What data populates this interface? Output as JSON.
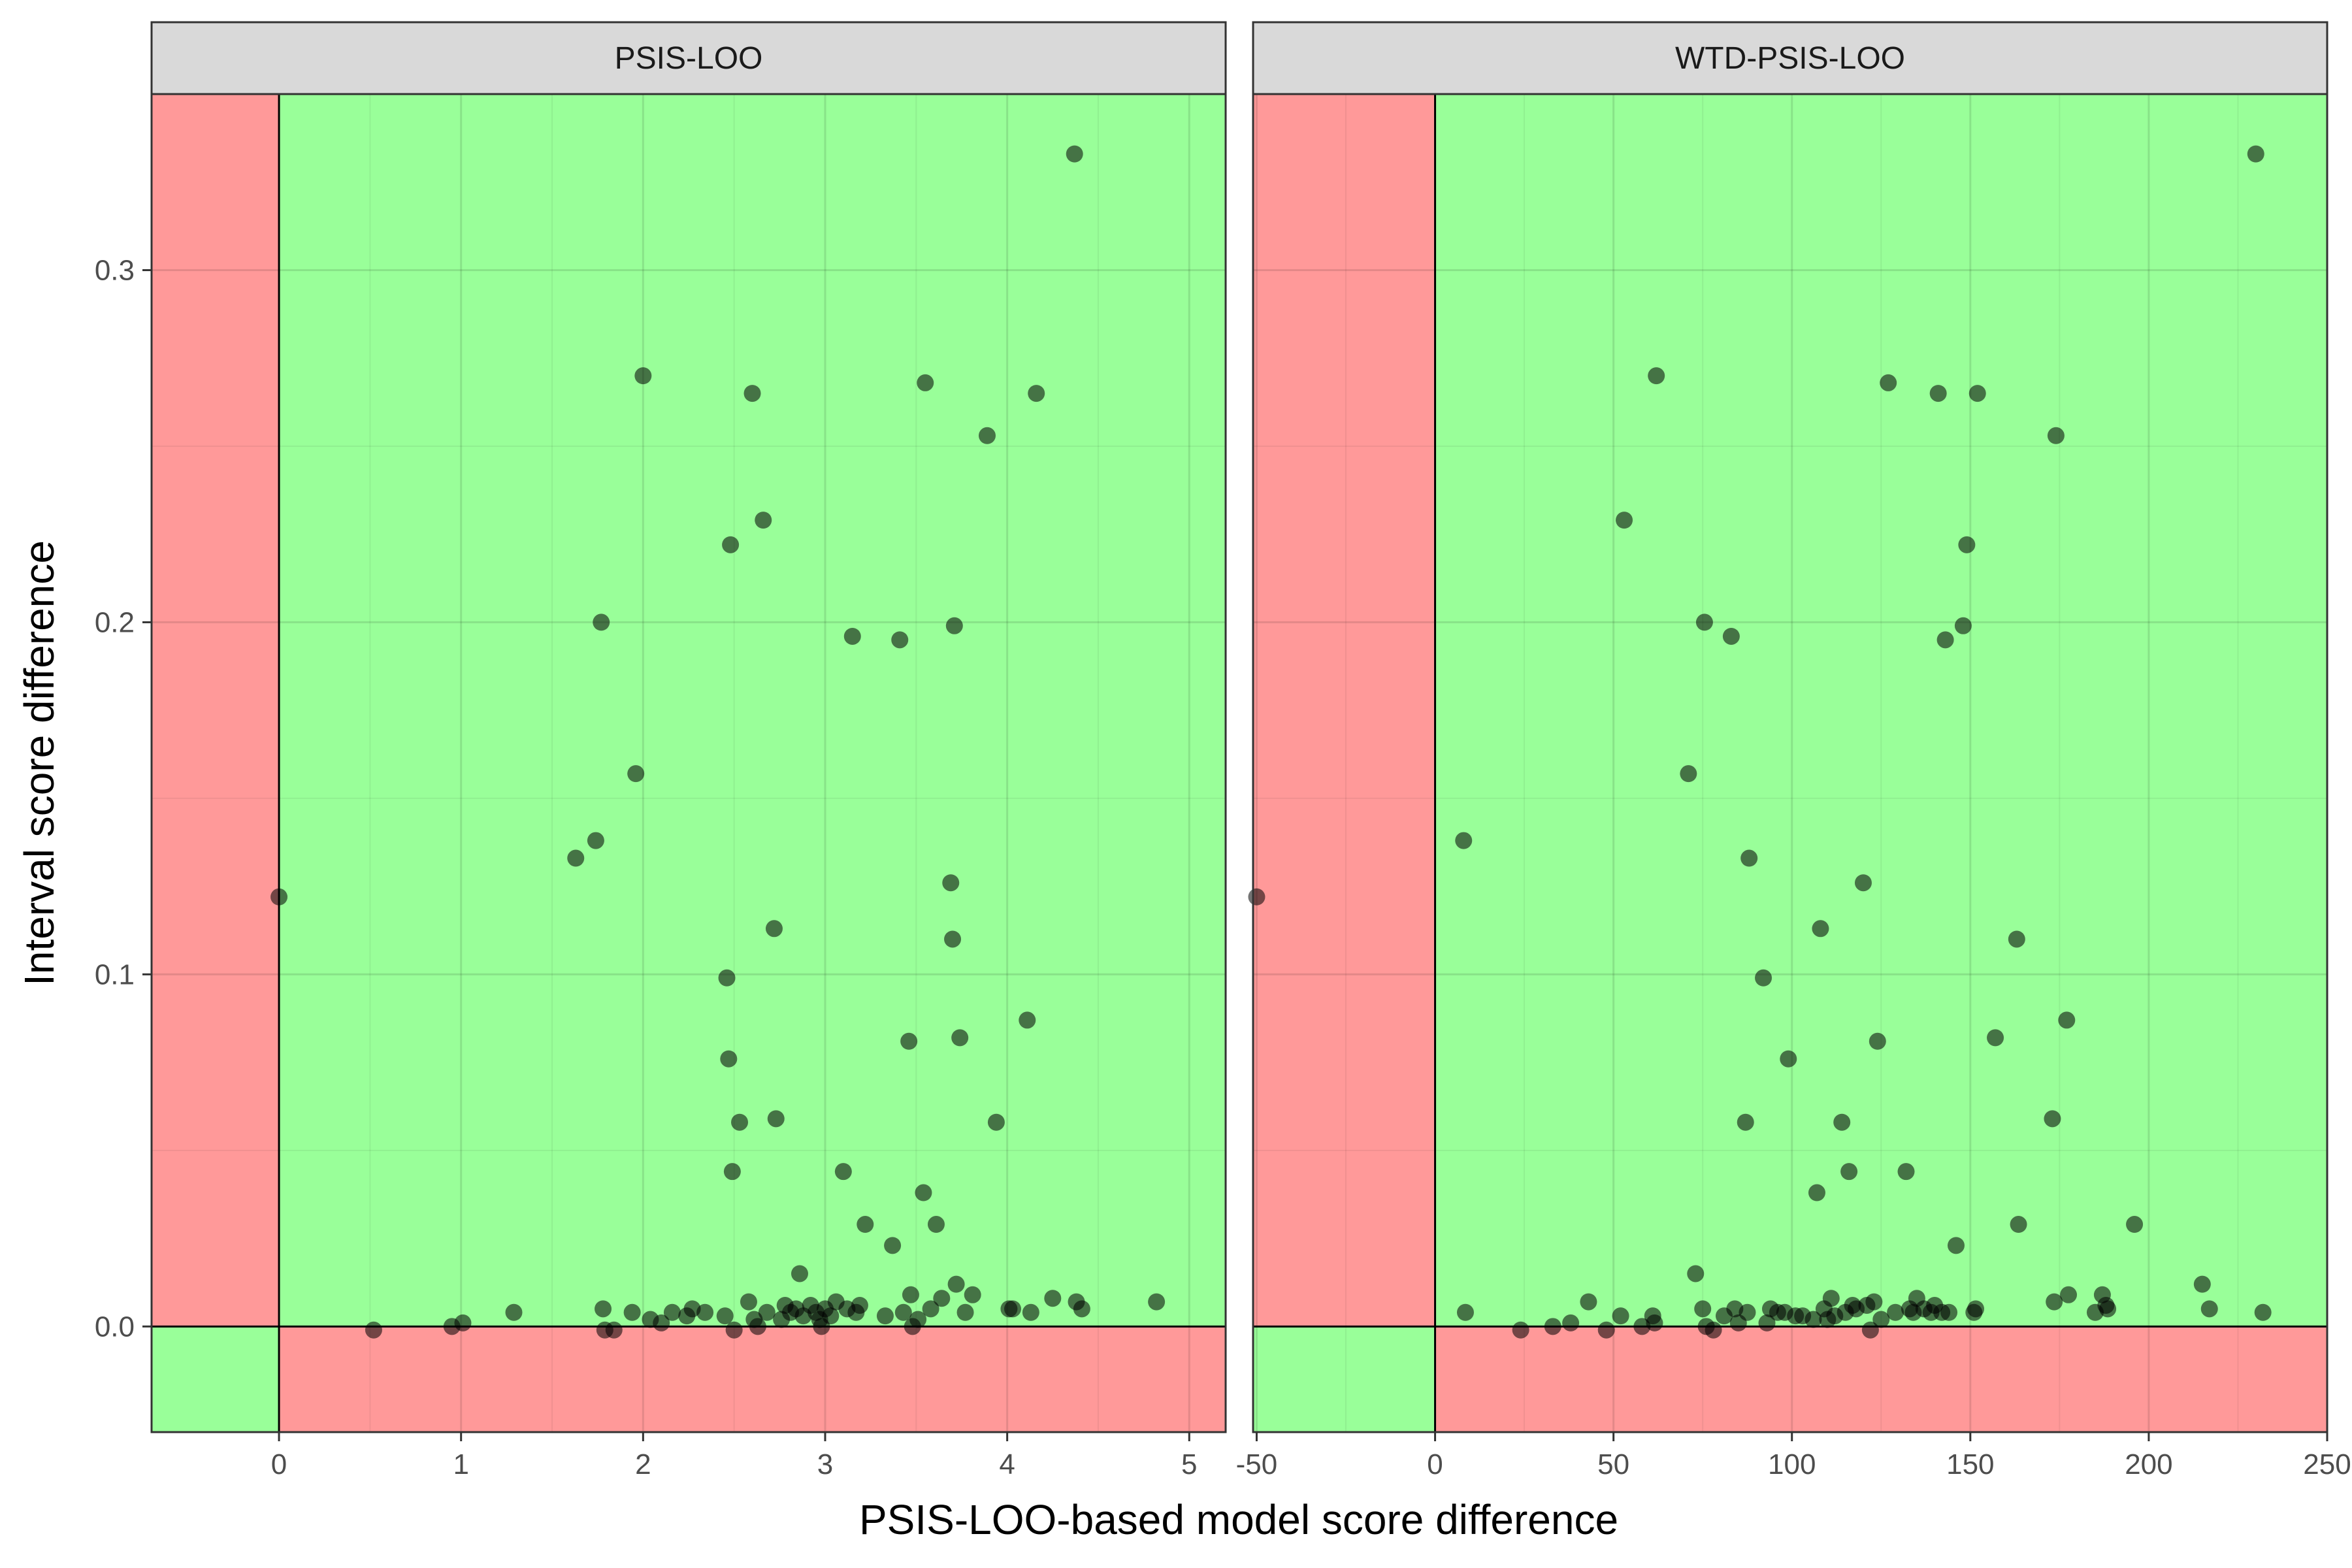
{
  "chart_data": {
    "type": "scatter",
    "xlabel": "PSIS-LOO-based model score difference",
    "ylabel": "Interval score difference",
    "ylim": [
      -0.03,
      0.35
    ],
    "y_ticks": [
      0.0,
      0.1,
      0.2,
      0.3
    ],
    "y_tick_labels": [
      "0.0",
      "0.1",
      "0.2",
      "0.3"
    ],
    "grid": true,
    "colors": {
      "good_region": "#99ff99",
      "bad_region": "#ff9999",
      "points": "#000000"
    },
    "region_rule": "green when x and y have the same sign, red otherwise",
    "panels": [
      {
        "title": "PSIS-LOO",
        "xlim": [
          -0.7,
          5.2
        ],
        "x_ticks": [
          0,
          1,
          2,
          3,
          4,
          5
        ],
        "x_tick_labels": [
          "0",
          "1",
          "2",
          "3",
          "4",
          "5"
        ],
        "points": [
          [
            0.0,
            0.122
          ],
          [
            0.52,
            -0.001
          ],
          [
            0.95,
            0.0
          ],
          [
            1.01,
            0.001
          ],
          [
            1.29,
            0.004
          ],
          [
            1.63,
            0.133
          ],
          [
            1.74,
            0.138
          ],
          [
            1.77,
            0.2
          ],
          [
            1.78,
            0.005
          ],
          [
            1.79,
            -0.001
          ],
          [
            1.84,
            -0.001
          ],
          [
            1.94,
            0.004
          ],
          [
            1.96,
            0.157
          ],
          [
            2.0,
            0.27
          ],
          [
            2.04,
            0.002
          ],
          [
            2.1,
            0.001
          ],
          [
            2.16,
            0.004
          ],
          [
            2.24,
            0.003
          ],
          [
            2.27,
            0.005
          ],
          [
            2.34,
            0.004
          ],
          [
            2.45,
            0.003
          ],
          [
            2.46,
            0.099
          ],
          [
            2.47,
            0.076
          ],
          [
            2.48,
            0.222
          ],
          [
            2.49,
            0.044
          ],
          [
            2.5,
            -0.001
          ],
          [
            2.53,
            0.058
          ],
          [
            2.58,
            0.007
          ],
          [
            2.6,
            0.265
          ],
          [
            2.61,
            0.002
          ],
          [
            2.63,
            0.0
          ],
          [
            2.66,
            0.229
          ],
          [
            2.68,
            0.004
          ],
          [
            2.72,
            0.113
          ],
          [
            2.73,
            0.059
          ],
          [
            2.76,
            0.002
          ],
          [
            2.78,
            0.006
          ],
          [
            2.81,
            0.004
          ],
          [
            2.84,
            0.005
          ],
          [
            2.86,
            0.015
          ],
          [
            2.88,
            0.003
          ],
          [
            2.92,
            0.006
          ],
          [
            2.95,
            0.004
          ],
          [
            2.97,
            0.002
          ],
          [
            2.98,
            0.0
          ],
          [
            3.0,
            0.005
          ],
          [
            3.03,
            0.003
          ],
          [
            3.06,
            0.007
          ],
          [
            3.1,
            0.044
          ],
          [
            3.12,
            0.005
          ],
          [
            3.15,
            0.196
          ],
          [
            3.17,
            0.004
          ],
          [
            3.19,
            0.006
          ],
          [
            3.22,
            0.029
          ],
          [
            3.33,
            0.003
          ],
          [
            3.37,
            0.023
          ],
          [
            3.41,
            0.195
          ],
          [
            3.43,
            0.004
          ],
          [
            3.46,
            0.081
          ],
          [
            3.47,
            0.009
          ],
          [
            3.48,
            0.0
          ],
          [
            3.51,
            0.002
          ],
          [
            3.54,
            0.038
          ],
          [
            3.55,
            0.268
          ],
          [
            3.58,
            0.005
          ],
          [
            3.61,
            0.029
          ],
          [
            3.64,
            0.008
          ],
          [
            3.69,
            0.126
          ],
          [
            3.7,
            0.11
          ],
          [
            3.71,
            0.199
          ],
          [
            3.72,
            0.012
          ],
          [
            3.74,
            0.082
          ],
          [
            3.77,
            0.004
          ],
          [
            3.81,
            0.009
          ],
          [
            3.89,
            0.253
          ],
          [
            3.94,
            0.058
          ],
          [
            4.01,
            0.005
          ],
          [
            4.03,
            0.005
          ],
          [
            4.11,
            0.087
          ],
          [
            4.13,
            0.004
          ],
          [
            4.16,
            0.265
          ],
          [
            4.25,
            0.008
          ],
          [
            4.37,
            0.333
          ],
          [
            4.38,
            0.007
          ],
          [
            4.41,
            0.005
          ],
          [
            4.82,
            0.007
          ]
        ]
      },
      {
        "title": "WTD-PSIS-LOO",
        "xlim": [
          -51,
          250
        ],
        "x_ticks": [
          -50,
          0,
          50,
          100,
          150,
          200,
          250
        ],
        "x_tick_labels": [
          "-50",
          "0",
          "50",
          "100",
          "150",
          "200",
          "250"
        ],
        "points": [
          [
            -50.0,
            0.122
          ],
          [
            8.0,
            0.138
          ],
          [
            8.5,
            0.004
          ],
          [
            24.0,
            -0.001
          ],
          [
            33.0,
            0.0
          ],
          [
            38.0,
            0.001
          ],
          [
            43.0,
            0.007
          ],
          [
            48.0,
            -0.001
          ],
          [
            52.0,
            0.003
          ],
          [
            53.0,
            0.229
          ],
          [
            58.0,
            0.0
          ],
          [
            61.0,
            0.003
          ],
          [
            61.5,
            0.001
          ],
          [
            62.0,
            0.27
          ],
          [
            71.0,
            0.157
          ],
          [
            73.0,
            0.015
          ],
          [
            75.0,
            0.005
          ],
          [
            75.5,
            0.2
          ],
          [
            76.0,
            0.0
          ],
          [
            78.0,
            -0.001
          ],
          [
            81.0,
            0.003
          ],
          [
            83.0,
            0.196
          ],
          [
            84.0,
            0.005
          ],
          [
            85.0,
            0.001
          ],
          [
            87.0,
            0.058
          ],
          [
            87.5,
            0.004
          ],
          [
            88.0,
            0.133
          ],
          [
            92.0,
            0.099
          ],
          [
            93.0,
            0.001
          ],
          [
            94.0,
            0.005
          ],
          [
            96.0,
            0.004
          ],
          [
            98.0,
            0.004
          ],
          [
            99.0,
            0.076
          ],
          [
            101.0,
            0.003
          ],
          [
            103.0,
            0.003
          ],
          [
            106.0,
            0.002
          ],
          [
            107.0,
            0.038
          ],
          [
            108.0,
            0.113
          ],
          [
            109.0,
            0.005
          ],
          [
            110.0,
            0.002
          ],
          [
            111.0,
            0.008
          ],
          [
            112.0,
            0.003
          ],
          [
            114.0,
            0.058
          ],
          [
            115.0,
            0.004
          ],
          [
            116.0,
            0.044
          ],
          [
            117.0,
            0.006
          ],
          [
            118.0,
            0.005
          ],
          [
            120.0,
            0.126
          ],
          [
            121.0,
            0.006
          ],
          [
            122.0,
            -0.001
          ],
          [
            123.0,
            0.007
          ],
          [
            124.0,
            0.081
          ],
          [
            125.0,
            0.002
          ],
          [
            127.0,
            0.268
          ],
          [
            129.0,
            0.004
          ],
          [
            132.0,
            0.044
          ],
          [
            133.0,
            0.005
          ],
          [
            134.0,
            0.004
          ],
          [
            135.0,
            0.008
          ],
          [
            137.0,
            0.005
          ],
          [
            139.0,
            0.004
          ],
          [
            140.0,
            0.006
          ],
          [
            141.0,
            0.265
          ],
          [
            142.0,
            0.004
          ],
          [
            143.0,
            0.195
          ],
          [
            144.0,
            0.004
          ],
          [
            146.0,
            0.023
          ],
          [
            148.0,
            0.199
          ],
          [
            149.0,
            0.222
          ],
          [
            151.0,
            0.004
          ],
          [
            151.5,
            0.005
          ],
          [
            152.0,
            0.265
          ],
          [
            157.0,
            0.082
          ],
          [
            163.0,
            0.11
          ],
          [
            163.5,
            0.029
          ],
          [
            173.0,
            0.059
          ],
          [
            173.5,
            0.007
          ],
          [
            174.0,
            0.253
          ],
          [
            177.0,
            0.087
          ],
          [
            177.5,
            0.009
          ],
          [
            185.0,
            0.004
          ],
          [
            187.0,
            0.009
          ],
          [
            188.0,
            0.006
          ],
          [
            188.5,
            0.005
          ],
          [
            196.0,
            0.029
          ],
          [
            215.0,
            0.012
          ],
          [
            217.0,
            0.005
          ],
          [
            230.0,
            0.333
          ],
          [
            232.0,
            0.004
          ]
        ]
      }
    ]
  }
}
